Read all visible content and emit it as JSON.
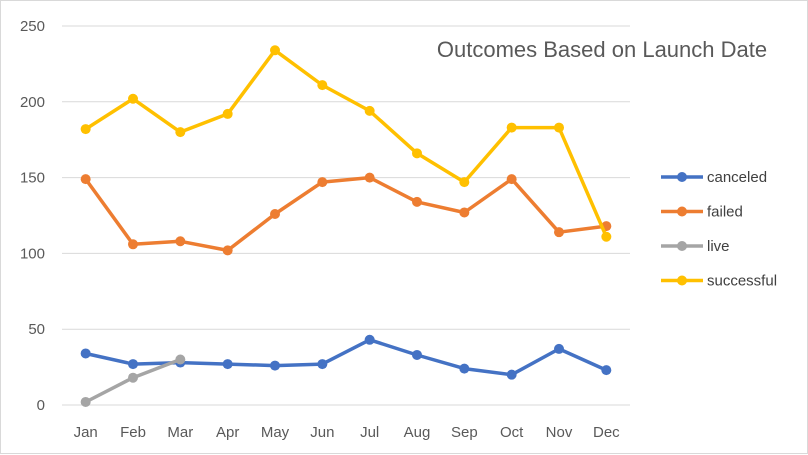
{
  "chart_data": {
    "type": "line",
    "title": "Outcomes Based on Launch Date",
    "xlabel": "",
    "ylabel": "",
    "categories": [
      "Jan",
      "Feb",
      "Mar",
      "Apr",
      "May",
      "Jun",
      "Jul",
      "Aug",
      "Sep",
      "Oct",
      "Nov",
      "Dec"
    ],
    "ylim": [
      0,
      250
    ],
    "yticks": [
      0,
      50,
      100,
      150,
      200,
      250
    ],
    "grid": "horizontal",
    "legend_position": "right",
    "series": [
      {
        "name": "canceled",
        "color": "#4472c4",
        "values": [
          34,
          27,
          28,
          27,
          26,
          27,
          43,
          33,
          24,
          20,
          37,
          23
        ]
      },
      {
        "name": "failed",
        "color": "#ed7d31",
        "values": [
          149,
          106,
          108,
          102,
          126,
          147,
          150,
          134,
          127,
          149,
          114,
          118
        ]
      },
      {
        "name": "live",
        "color": "#a5a5a5",
        "values": [
          2,
          18,
          30,
          null,
          null,
          null,
          null,
          null,
          null,
          null,
          null,
          null
        ]
      },
      {
        "name": "successful",
        "color": "#ffc000",
        "values": [
          182,
          202,
          180,
          192,
          234,
          211,
          194,
          166,
          147,
          183,
          183,
          111
        ]
      }
    ]
  }
}
